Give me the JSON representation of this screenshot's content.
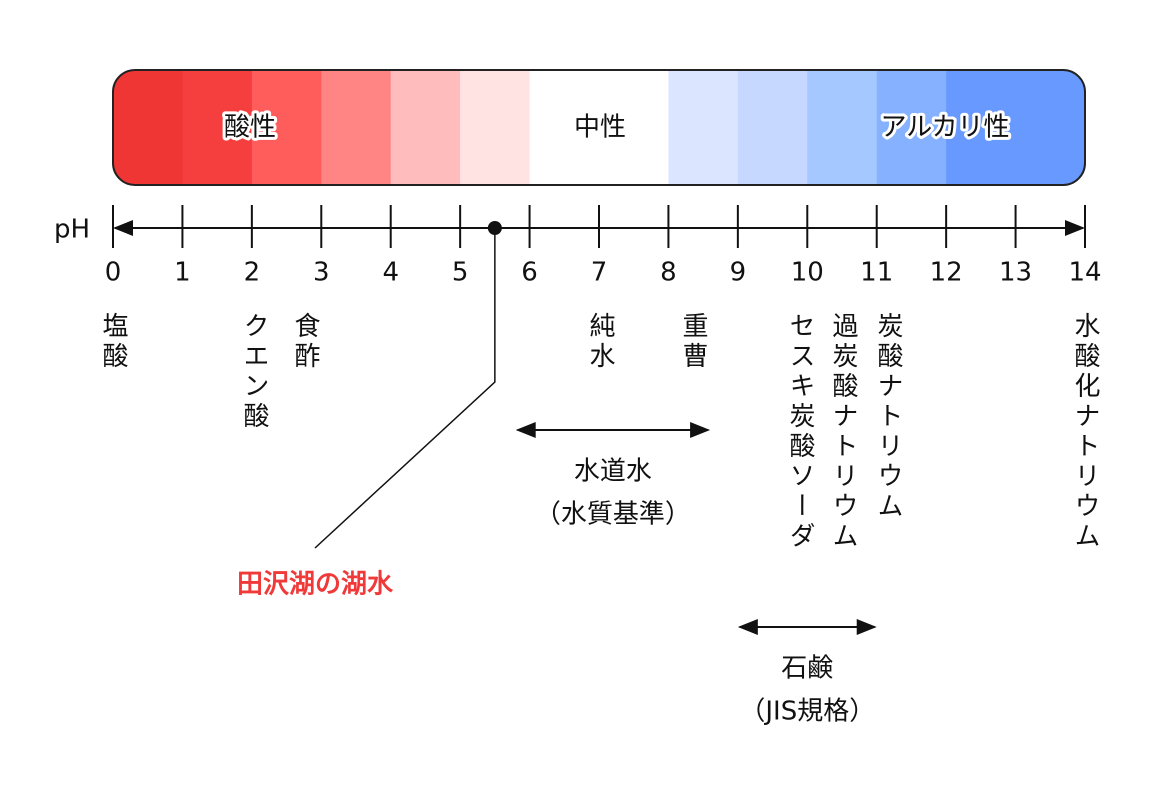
{
  "scale": {
    "axis_label": "pH",
    "ticks": [
      0,
      1,
      2,
      3,
      4,
      5,
      6,
      7,
      8,
      9,
      10,
      11,
      12,
      13,
      14
    ],
    "zones": [
      {
        "label": "酸性"
      },
      {
        "label": "中性"
      },
      {
        "label": "アルカリ性"
      }
    ]
  },
  "substances": [
    "塩酸",
    "クエン酸",
    "食酢",
    "純水",
    "重曹",
    "セスキ炭酸ソーダ",
    "過炭酸ナトリウム",
    "炭酸ナトリウム",
    "水酸化ナトリウム"
  ],
  "ranges": [
    {
      "lines": [
        "水道水",
        "（水質基準）"
      ],
      "range": [
        5.8,
        8.6
      ]
    },
    {
      "lines": [
        "石鹸",
        "（JIS規格）"
      ],
      "range": [
        9,
        11
      ]
    }
  ],
  "marker": {
    "label": "田沢湖の湖水",
    "value": 5.5
  }
}
